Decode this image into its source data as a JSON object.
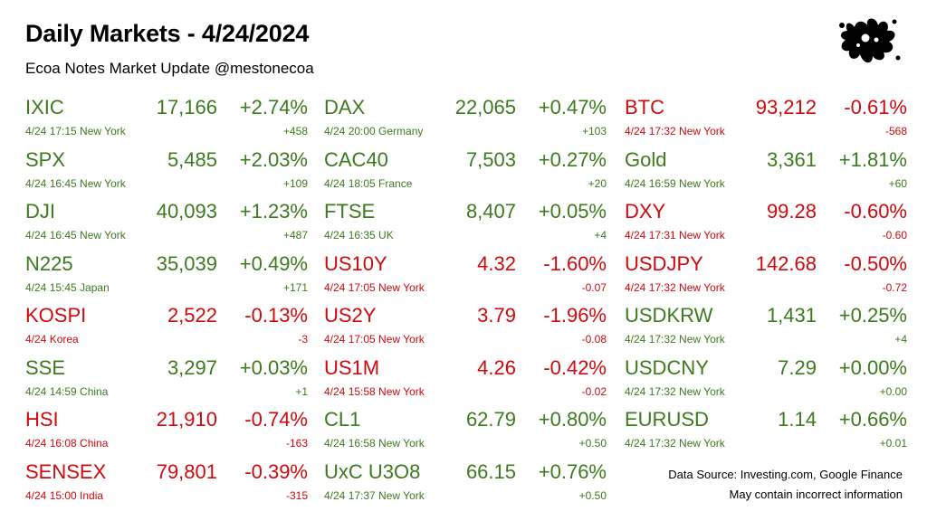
{
  "header": {
    "title": "Daily Markets - 4/24/2024",
    "subtitle": "Ecoa Notes Market Update @mestonecoa"
  },
  "logo": {
    "icon": "ink-splat-logo",
    "color": "#000000"
  },
  "colors": {
    "up": "#3c7a1e",
    "down": "#d0090c"
  },
  "columns": [
    [
      {
        "symbol": "IXIC",
        "price": "17,166",
        "pct": "+2.74%",
        "meta": "4/24 17:15 New York",
        "change": "+458",
        "dir": "up"
      },
      {
        "symbol": "SPX",
        "price": "5,485",
        "pct": "+2.03%",
        "meta": "4/24 16:45 New York",
        "change": "+109",
        "dir": "up"
      },
      {
        "symbol": "DJI",
        "price": "40,093",
        "pct": "+1.23%",
        "meta": "4/24 16:45 New York",
        "change": "+487",
        "dir": "up"
      },
      {
        "symbol": "N225",
        "price": "35,039",
        "pct": "+0.49%",
        "meta": "4/24 15:45 Japan",
        "change": "+171",
        "dir": "up"
      },
      {
        "symbol": "KOSPI",
        "price": "2,522",
        "pct": "-0.13%",
        "meta": "4/24  Korea",
        "change": "-3",
        "dir": "down"
      },
      {
        "symbol": "SSE",
        "price": "3,297",
        "pct": "+0.03%",
        "meta": "4/24 14:59 China",
        "change": "+1",
        "dir": "up"
      },
      {
        "symbol": "HSI",
        "price": "21,910",
        "pct": "-0.74%",
        "meta": "4/24 16:08 China",
        "change": "-163",
        "dir": "down"
      },
      {
        "symbol": "SENSEX",
        "price": "79,801",
        "pct": "-0.39%",
        "meta": "4/24 15:00 India",
        "change": "-315",
        "dir": "down"
      }
    ],
    [
      {
        "symbol": "DAX",
        "price": "22,065",
        "pct": "+0.47%",
        "meta": "4/24 20:00 Germany",
        "change": "+103",
        "dir": "up"
      },
      {
        "symbol": "CAC40",
        "price": "7,503",
        "pct": "+0.27%",
        "meta": "4/24 18:05 France",
        "change": "+20",
        "dir": "up"
      },
      {
        "symbol": "FTSE",
        "price": "8,407",
        "pct": "+0.05%",
        "meta": "4/24 16:35 UK",
        "change": "+4",
        "dir": "up"
      },
      {
        "symbol": "US10Y",
        "price": "4.32",
        "pct": "-1.60%",
        "meta": "4/24 17:05 New York",
        "change": "-0.07",
        "dir": "down"
      },
      {
        "symbol": "US2Y",
        "price": "3.79",
        "pct": "-1.96%",
        "meta": "4/24 17:05 New York",
        "change": "-0.08",
        "dir": "down"
      },
      {
        "symbol": "US1M",
        "price": "4.26",
        "pct": "-0.42%",
        "meta": "4/24 15:58 New York",
        "change": "-0.02",
        "dir": "down"
      },
      {
        "symbol": "CL1",
        "price": "62.79",
        "pct": "+0.80%",
        "meta": "4/24 16:58 New York",
        "change": "+0.50",
        "dir": "up"
      },
      {
        "symbol": "UxC U3O8",
        "price": "66.15",
        "pct": "+0.76%",
        "meta": "4/24 17:37 New York",
        "change": "+0.50",
        "dir": "up"
      }
    ],
    [
      {
        "symbol": "BTC",
        "price": "93,212",
        "pct": "-0.61%",
        "meta": "4/24 17:32 New York",
        "change": "-568",
        "dir": "down"
      },
      {
        "symbol": "Gold",
        "price": "3,361",
        "pct": "+1.81%",
        "meta": "4/24 16:59 New York",
        "change": "+60",
        "dir": "up"
      },
      {
        "symbol": "DXY",
        "price": "99.28",
        "pct": "-0.60%",
        "meta": "4/24 17:31 New York",
        "change": "-0.60",
        "dir": "down"
      },
      {
        "symbol": "USDJPY",
        "price": "142.68",
        "pct": "-0.50%",
        "meta": "4/24 17:32 New York",
        "change": "-0.72",
        "dir": "down"
      },
      {
        "symbol": "USDKRW",
        "price": "1,431",
        "pct": "+0.25%",
        "meta": "4/24 17:32 New York",
        "change": "+4",
        "dir": "up"
      },
      {
        "symbol": "USDCNY",
        "price": "7.29",
        "pct": "+0.00%",
        "meta": "4/24 17:32 New York",
        "change": "+0.00",
        "dir": "up"
      },
      {
        "symbol": "EURUSD",
        "price": "1.14",
        "pct": "+0.66%",
        "meta": "4/24 17:32 New York",
        "change": "+0.01",
        "dir": "up"
      }
    ]
  ],
  "footer": {
    "source": "Data Source: Investing.com, Google Finance",
    "disclaimer": "May contain incorrect information"
  }
}
